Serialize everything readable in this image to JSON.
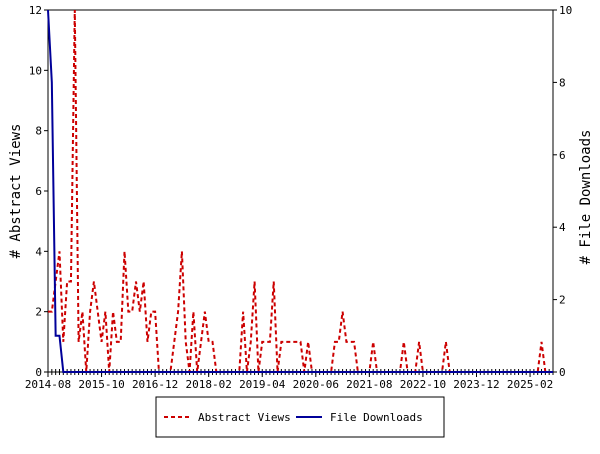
{
  "chart_data": {
    "type": "line",
    "y_label": "# Abstract Views",
    "y2_label": "# File Downloads",
    "x": [
      "2014-08",
      "2014-09",
      "2014-10",
      "2014-11",
      "2014-12",
      "2015-01",
      "2015-02",
      "2015-03",
      "2015-04",
      "2015-05",
      "2015-06",
      "2015-07",
      "2015-08",
      "2015-09",
      "2015-10",
      "2015-11",
      "2015-12",
      "2016-01",
      "2016-02",
      "2016-03",
      "2016-04",
      "2016-05",
      "2016-06",
      "2016-07",
      "2016-08",
      "2016-09",
      "2016-10",
      "2016-11",
      "2016-12",
      "2017-01",
      "2017-02",
      "2017-03",
      "2017-04",
      "2017-05",
      "2017-06",
      "2017-07",
      "2017-08",
      "2017-09",
      "2017-10",
      "2017-11",
      "2017-12",
      "2018-01",
      "2018-02",
      "2018-03",
      "2018-04",
      "2018-05",
      "2018-06",
      "2018-07",
      "2018-08",
      "2018-09",
      "2018-10",
      "2018-11",
      "2018-12",
      "2019-01",
      "2019-02",
      "2019-03",
      "2019-04",
      "2019-05",
      "2019-06",
      "2019-07",
      "2019-08",
      "2019-09",
      "2019-10",
      "2019-11",
      "2019-12",
      "2020-01",
      "2020-02",
      "2020-03",
      "2020-04",
      "2020-05",
      "2020-06",
      "2020-07",
      "2020-08",
      "2020-09",
      "2020-10",
      "2020-11",
      "2020-12",
      "2021-01",
      "2021-02",
      "2021-03",
      "2021-04",
      "2021-05",
      "2021-06",
      "2021-07",
      "2021-08",
      "2021-09",
      "2021-10",
      "2021-11",
      "2021-12",
      "2022-01",
      "2022-02",
      "2022-03",
      "2022-04",
      "2022-05",
      "2022-06",
      "2022-07",
      "2022-08",
      "2022-09",
      "2022-10",
      "2022-11",
      "2022-12",
      "2023-01",
      "2023-02",
      "2023-03",
      "2023-04",
      "2023-05",
      "2023-06",
      "2023-07",
      "2023-08",
      "2023-09",
      "2023-10",
      "2023-11",
      "2023-12",
      "2024-01",
      "2024-02",
      "2024-03",
      "2024-04",
      "2024-05",
      "2024-06",
      "2024-07",
      "2024-08",
      "2024-09",
      "2024-10",
      "2024-11",
      "2024-12",
      "2025-01",
      "2025-02",
      "2025-03",
      "2025-04",
      "2025-05",
      "2025-06",
      "2025-07",
      "2025-08"
    ],
    "series": [
      {
        "name": "Abstract Views",
        "color": "#cc0000",
        "dash": true,
        "values": [
          2,
          2,
          3,
          4,
          1,
          3,
          3,
          12,
          1,
          2,
          0,
          2,
          3,
          2,
          1,
          2,
          0,
          2,
          1,
          1,
          4,
          2,
          2,
          3,
          2,
          3,
          1,
          2,
          2,
          0,
          0,
          0,
          0,
          1,
          2,
          4,
          1,
          0,
          2,
          0,
          1,
          2,
          1,
          1,
          0,
          0,
          0,
          0,
          0,
          0,
          0,
          2,
          0,
          1,
          3,
          0,
          1,
          1,
          1,
          3,
          0,
          1,
          1,
          1,
          1,
          1,
          1,
          0,
          1,
          0,
          0,
          0,
          0,
          0,
          0,
          1,
          1,
          2,
          1,
          1,
          1,
          0,
          0,
          0,
          0,
          1,
          0,
          0,
          0,
          0,
          0,
          0,
          0,
          1,
          0,
          0,
          0,
          1,
          0,
          0,
          0,
          0,
          0,
          0,
          1,
          0,
          0,
          0,
          0,
          0,
          0,
          0,
          0,
          0,
          0,
          0,
          0,
          0,
          0,
          0,
          0,
          0,
          0,
          0,
          0,
          0,
          0,
          0,
          0,
          1,
          0,
          0,
          0
        ]
      },
      {
        "name": "File Downloads",
        "color": "#000099",
        "axis": "y2",
        "values": [
          10,
          8,
          1,
          1,
          0,
          0,
          0,
          0,
          0,
          0,
          0,
          0,
          0,
          0,
          0,
          0,
          0,
          0,
          0,
          0,
          0,
          0,
          0,
          0,
          0,
          0,
          0,
          0,
          0,
          0,
          0,
          0,
          0,
          0,
          0,
          0,
          0,
          0,
          0,
          0,
          0,
          0,
          0,
          0,
          0,
          0,
          0,
          0,
          0,
          0,
          0,
          0,
          0,
          0,
          0,
          0,
          0,
          0,
          0,
          0,
          0,
          0,
          0,
          0,
          0,
          0,
          0,
          0,
          0,
          0,
          0,
          0,
          0,
          0,
          0,
          0,
          0,
          0,
          0,
          0,
          0,
          0,
          0,
          0,
          0,
          0,
          0,
          0,
          0,
          0,
          0,
          0,
          0,
          0,
          0,
          0,
          0,
          0,
          0,
          0,
          0,
          0,
          0,
          0,
          0,
          0,
          0,
          0,
          0,
          0,
          0,
          0,
          0,
          0,
          0,
          0,
          0,
          0,
          0,
          0,
          0,
          0,
          0,
          0,
          0,
          0,
          0,
          0,
          0,
          0,
          0,
          0,
          0
        ]
      }
    ],
    "xlim": [
      "2014-08",
      "2025-08"
    ],
    "xticks": [
      "2014-08",
      "2015-10",
      "2016-12",
      "2018-02",
      "2019-04",
      "2020-06",
      "2021-08",
      "2022-10",
      "2023-12",
      "2025-02"
    ],
    "ylim": [
      0,
      12
    ],
    "yticks": [
      0,
      2,
      4,
      6,
      8,
      10,
      12
    ],
    "y2lim": [
      0,
      10
    ],
    "y2ticks": [
      0,
      2,
      4,
      6,
      8,
      10
    ],
    "legend": "bottom"
  }
}
